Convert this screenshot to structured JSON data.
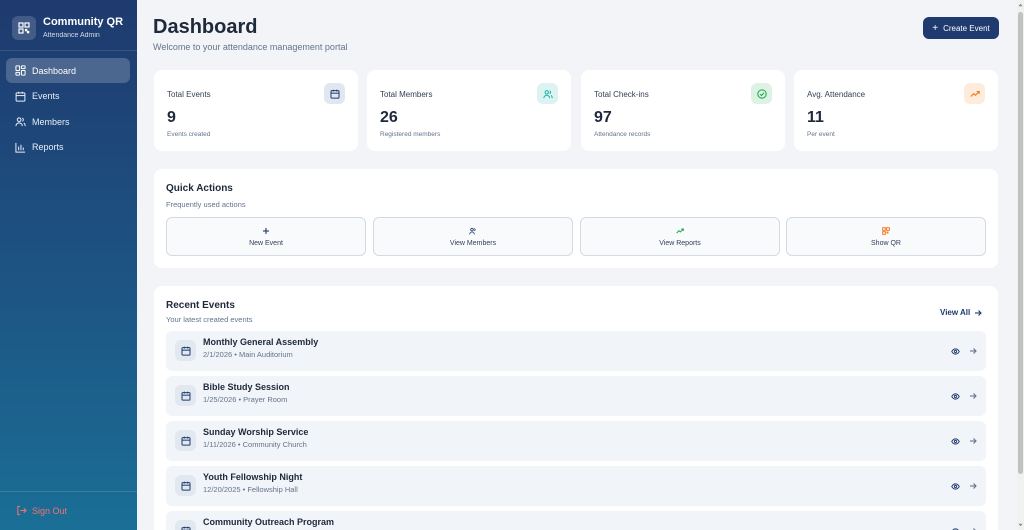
{
  "sidebar": {
    "brand_title": "Community QR",
    "brand_subtitle": "Attendance Admin",
    "items": [
      {
        "label": "Dashboard",
        "icon": "dashboard-icon"
      },
      {
        "label": "Events",
        "icon": "calendar-icon"
      },
      {
        "label": "Members",
        "icon": "users-icon"
      },
      {
        "label": "Reports",
        "icon": "bar-chart-icon"
      }
    ],
    "sign_out": "Sign Out"
  },
  "header": {
    "title": "Dashboard",
    "subtitle": "Welcome to your attendance management portal",
    "create_button": "Create Event"
  },
  "stats": [
    {
      "label": "Total Events",
      "value": "9",
      "sub": "Events created",
      "icon": "calendar-icon",
      "color": "#1e3a6e",
      "bg": "#e0e7f1"
    },
    {
      "label": "Total Members",
      "value": "26",
      "sub": "Registered members",
      "icon": "users-icon",
      "color": "#14b8a6",
      "bg": "#ddf3f1"
    },
    {
      "label": "Total Check-ins",
      "value": "97",
      "sub": "Attendance records",
      "icon": "check-circle-icon",
      "color": "#16a34a",
      "bg": "#dcf3e3"
    },
    {
      "label": "Avg. Attendance",
      "value": "11",
      "sub": "Per event",
      "icon": "trending-up-icon",
      "color": "#f97316",
      "bg": "#fdebdc"
    }
  ],
  "quick_actions": {
    "title": "Quick Actions",
    "subtitle": "Frequently used actions",
    "items": [
      {
        "label": "New Event",
        "icon": "plus-icon"
      },
      {
        "label": "View Members",
        "icon": "users-icon"
      },
      {
        "label": "View Reports",
        "icon": "trending-up-icon"
      },
      {
        "label": "Show QR",
        "icon": "qr-code-icon"
      }
    ]
  },
  "recent_events": {
    "title": "Recent Events",
    "subtitle": "Your latest created events",
    "view_all": "View All",
    "items": [
      {
        "title": "Monthly General Assembly",
        "meta": "2/1/2026 • Main Auditorium"
      },
      {
        "title": "Bible Study Session",
        "meta": "1/25/2026 • Prayer Room"
      },
      {
        "title": "Sunday Worship Service",
        "meta": "1/11/2026 • Community Church"
      },
      {
        "title": "Youth Fellowship Night",
        "meta": "12/20/2025 • Fellowship Hall"
      },
      {
        "title": "Community Outreach Program",
        "meta": ""
      }
    ]
  },
  "colors": {
    "primary": "#1e3a6e",
    "signout": "#f87171",
    "background": "#f2f4f7"
  }
}
